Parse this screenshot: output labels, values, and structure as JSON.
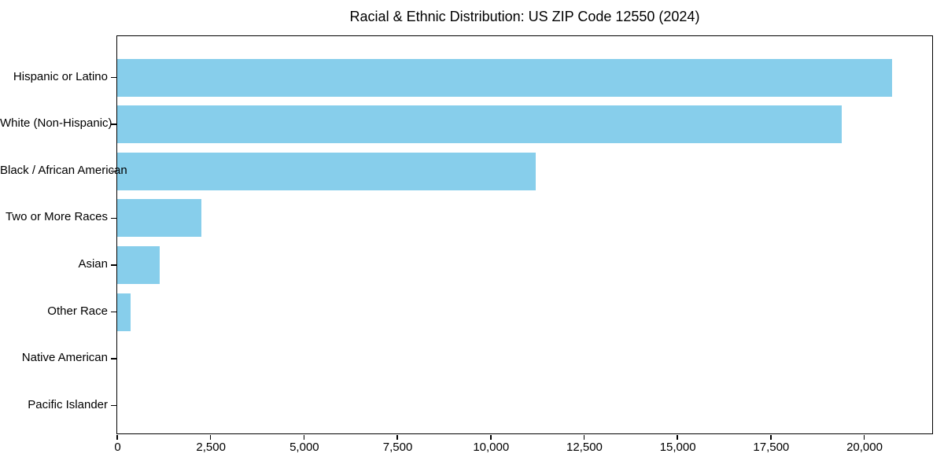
{
  "chart_data": {
    "type": "bar",
    "orientation": "horizontal",
    "title": "Racial & Ethnic Distribution: US ZIP Code 12550 (2024)",
    "categories": [
      "Hispanic or Latino",
      "White (Non-Hispanic)",
      "Black / African American",
      "Two or More Races",
      "Asian",
      "Other Race",
      "Native American",
      "Pacific Islander"
    ],
    "values": [
      20750,
      19400,
      11200,
      2250,
      1130,
      360,
      0,
      0
    ],
    "xlabel": "",
    "ylabel": "",
    "xlim": [
      0,
      21800
    ],
    "xticks": [
      0,
      2500,
      5000,
      7500,
      10000,
      12500,
      15000,
      17500,
      20000
    ],
    "xtick_labels": [
      "0",
      "2,500",
      "5,000",
      "7,500",
      "10,000",
      "12,500",
      "15,000",
      "17,500",
      "20,000"
    ],
    "grid": false,
    "legend": "none",
    "bar_color": "#87CEEB",
    "axis_color": "#000000",
    "background_color": "#FFFFFF"
  }
}
